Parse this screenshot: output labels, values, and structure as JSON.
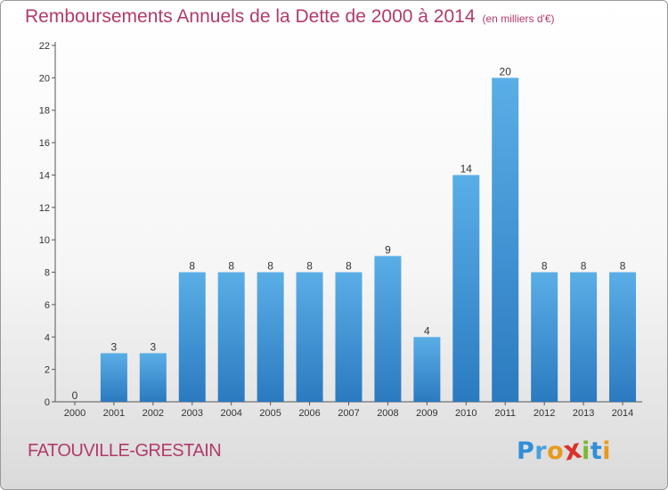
{
  "chart_data": {
    "type": "bar",
    "title": "Remboursements Annuels de la Dette de 2000 à 2014",
    "unit": "(en milliers d'€)",
    "categories": [
      "2000",
      "2001",
      "2002",
      "2003",
      "2004",
      "2005",
      "2006",
      "2007",
      "2008",
      "2009",
      "2010",
      "2011",
      "2012",
      "2013",
      "2014"
    ],
    "values": [
      0,
      3,
      3,
      8,
      8,
      8,
      8,
      8,
      9,
      4,
      14,
      20,
      8,
      8,
      8
    ],
    "data_labels": [
      "0",
      "3",
      "3",
      "8",
      "8",
      "8",
      "8",
      "8",
      "9",
      "4",
      "14",
      "20",
      "8",
      "8",
      "8"
    ],
    "ylim": [
      0,
      22
    ],
    "yticks": [
      0,
      2,
      4,
      6,
      8,
      10,
      12,
      14,
      16,
      18,
      20,
      22
    ],
    "ytick_labels": [
      "0",
      "2",
      "4",
      "6",
      "8",
      "10",
      "12",
      "14",
      "16",
      "18",
      "20",
      "22"
    ],
    "grid": false,
    "legend": false,
    "bar_color_top": "#5aaee6",
    "bar_color_bottom": "#2b7ac0"
  },
  "commune": "FATOUVILLE-GRESTAIN",
  "logo": {
    "letters": [
      "P",
      "r",
      "o",
      "x",
      "i",
      "t",
      "i"
    ],
    "colors": [
      "#2f8fd8",
      "#4aa0dc",
      "#e89a1c",
      "#d8322a",
      "#7cb82f",
      "#2f8fd8",
      "#e89a1c"
    ]
  }
}
